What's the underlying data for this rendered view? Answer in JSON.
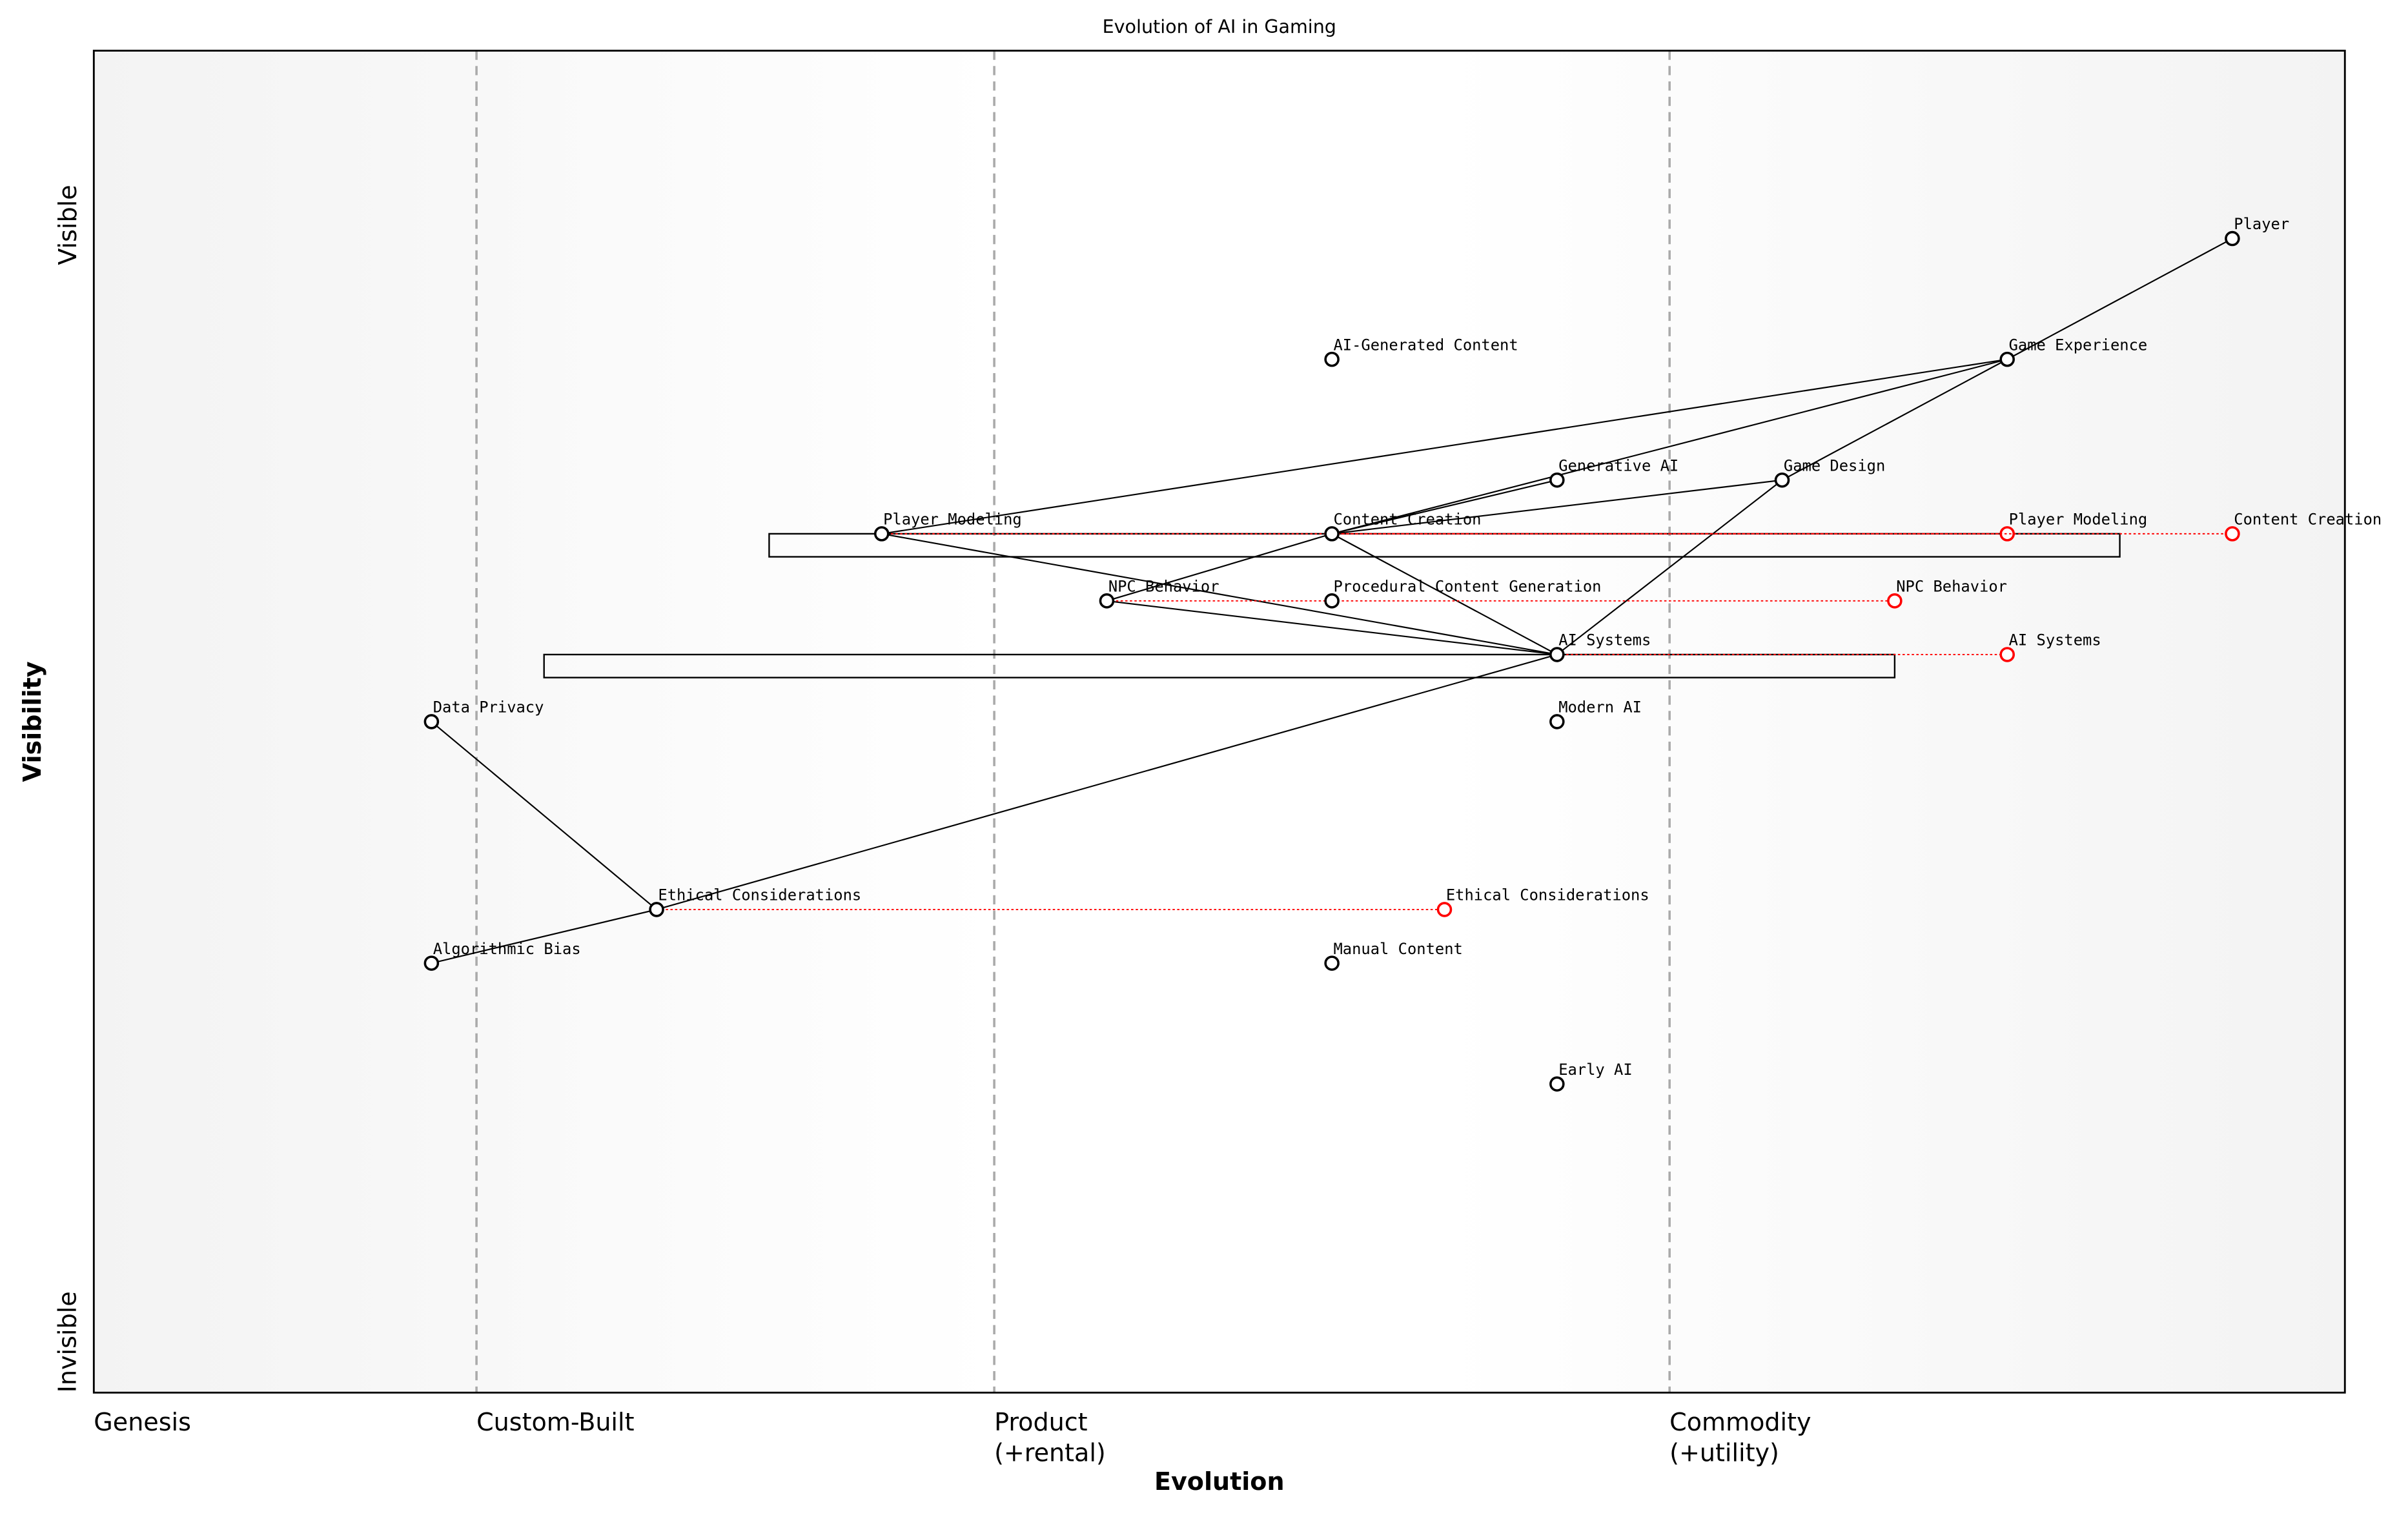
{
  "chart_data": {
    "type": "wardley",
    "title": "Evolution of AI in Gaming",
    "xlabel": "Evolution",
    "ylabel": "Visibility",
    "xlim": [
      0,
      1
    ],
    "ylim": [
      0,
      1
    ],
    "xticks": [
      {
        "value": 0,
        "label": "Genesis"
      },
      {
        "value": 0.17,
        "label": "Custom-Built"
      },
      {
        "value": 0.4,
        "label": "Product\n(+rental)"
      },
      {
        "value": 0.7,
        "label": "Commodity\n(+utility)"
      }
    ],
    "yticks": [
      {
        "value": 0,
        "label": "Invisible"
      },
      {
        "value": 0.9,
        "label": "Visible"
      }
    ],
    "nodes": [
      {
        "name": "Player",
        "x": 0.95,
        "y": 0.86
      },
      {
        "name": "Game Experience",
        "x": 0.85,
        "y": 0.77
      },
      {
        "name": "AI-Generated Content",
        "x": 0.55,
        "y": 0.77
      },
      {
        "name": "Generative AI",
        "x": 0.65,
        "y": 0.68
      },
      {
        "name": "Game Design",
        "x": 0.75,
        "y": 0.68
      },
      {
        "name": "Player Modeling",
        "x": 0.35,
        "y": 0.64
      },
      {
        "name": "Content Creation",
        "x": 0.55,
        "y": 0.64
      },
      {
        "name": "NPC Behavior",
        "x": 0.45,
        "y": 0.59
      },
      {
        "name": "Procedural Content Generation",
        "x": 0.55,
        "y": 0.59
      },
      {
        "name": "AI Systems",
        "x": 0.65,
        "y": 0.55
      },
      {
        "name": "Data Privacy",
        "x": 0.15,
        "y": 0.5
      },
      {
        "name": "Modern AI",
        "x": 0.65,
        "y": 0.5
      },
      {
        "name": "Ethical Considerations",
        "x": 0.25,
        "y": 0.36
      },
      {
        "name": "Algorithmic Bias",
        "x": 0.15,
        "y": 0.32
      },
      {
        "name": "Manual Content",
        "x": 0.55,
        "y": 0.32
      },
      {
        "name": "Early AI",
        "x": 0.65,
        "y": 0.23
      }
    ],
    "links": [
      [
        0,
        1
      ],
      [
        1,
        5
      ],
      [
        1,
        6
      ],
      [
        6,
        3
      ],
      [
        1,
        4
      ],
      [
        4,
        9
      ],
      [
        6,
        4
      ],
      [
        6,
        7
      ],
      [
        6,
        9
      ],
      [
        5,
        9
      ],
      [
        7,
        9
      ],
      [
        9,
        12
      ],
      [
        12,
        10
      ],
      [
        12,
        13
      ]
    ],
    "evolve": [
      {
        "node": 5,
        "x": 0.85
      },
      {
        "node": 6,
        "x": 0.95
      },
      {
        "node": 7,
        "x": 0.8
      },
      {
        "node": 9,
        "x": 0.85
      },
      {
        "node": 12,
        "x": 0.6
      }
    ],
    "pipelines": [
      {
        "node": 6,
        "start": 0.3,
        "end": 0.9
      },
      {
        "node": 9,
        "start": 0.2,
        "end": 0.8
      }
    ],
    "evolve_color": "#ff0000"
  }
}
